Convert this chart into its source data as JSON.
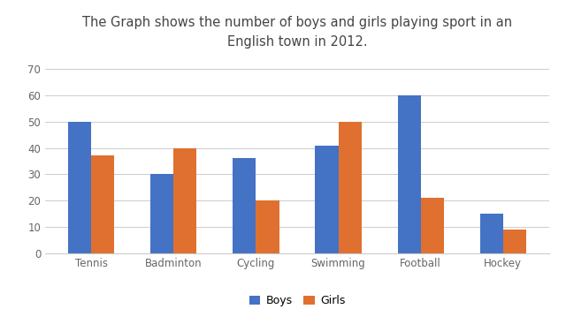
{
  "title": "The Graph shows the number of boys and girls playing sport in an\nEnglish town in 2012.",
  "categories": [
    "Tennis",
    "Badminton",
    "Cycling",
    "Swimming",
    "Football",
    "Hockey"
  ],
  "boys": [
    50,
    30,
    36,
    41,
    60,
    15
  ],
  "girls": [
    37,
    40,
    20,
    50,
    21,
    9
  ],
  "boys_color": "#4472C4",
  "girls_color": "#E07030",
  "ylim": [
    0,
    75
  ],
  "yticks": [
    0,
    10,
    20,
    30,
    40,
    50,
    60,
    70
  ],
  "legend_labels": [
    "Boys",
    "Girls"
  ],
  "bar_width": 0.28,
  "title_fontsize": 10.5,
  "tick_fontsize": 8.5,
  "legend_fontsize": 9,
  "background_color": "#ffffff",
  "grid_color": "#cccccc"
}
